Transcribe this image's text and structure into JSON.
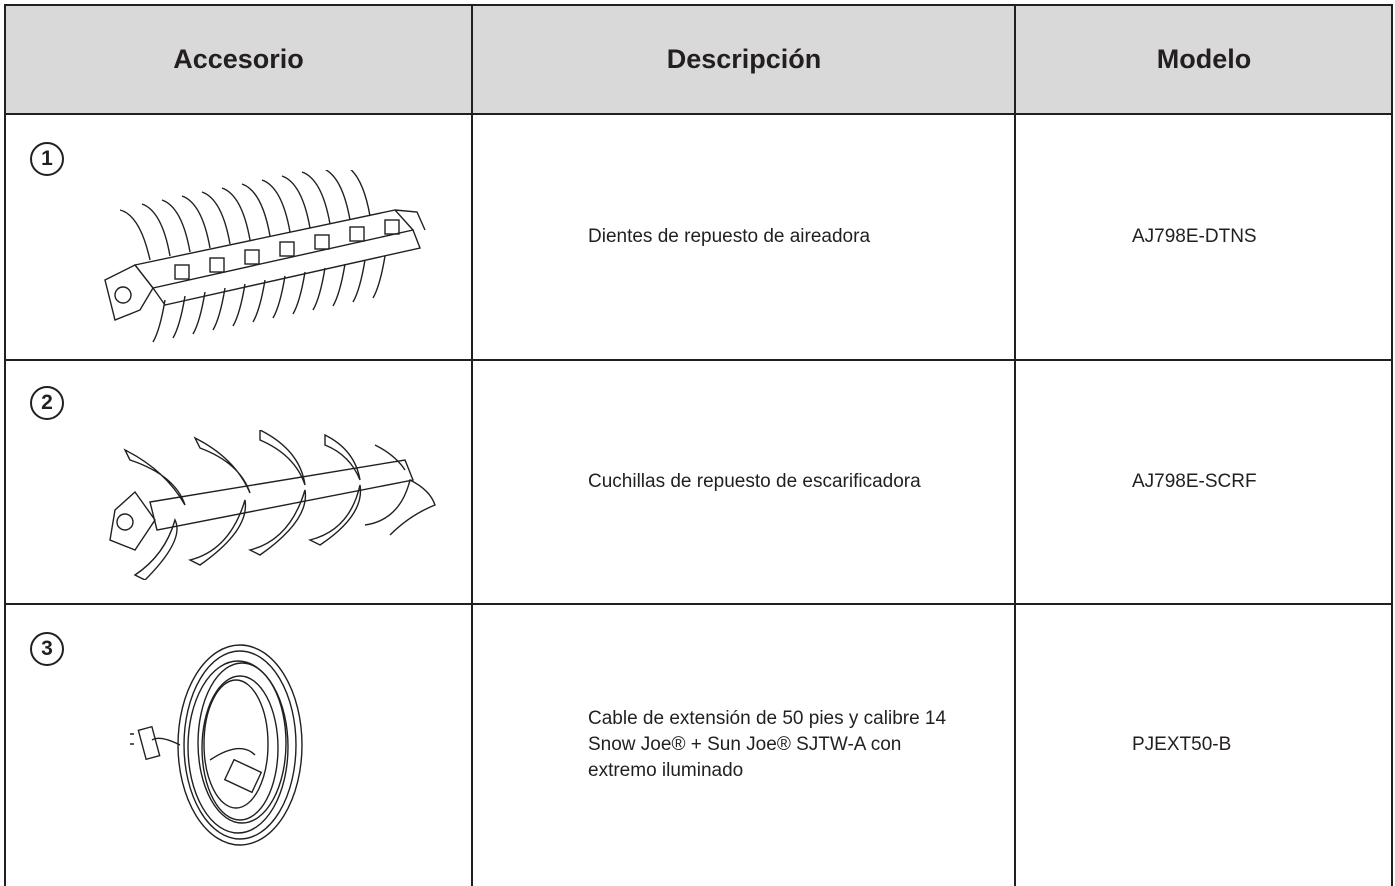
{
  "table": {
    "header": [
      "Accesorio",
      "Descripción",
      "Modelo"
    ],
    "rows": [
      {
        "number": "1",
        "description": [
          "Dientes de repuesto de aireadora"
        ],
        "model": "AJ798E-DTNS"
      },
      {
        "number": "2",
        "description": [
          "Cuchillas de repuesto de escarificadora"
        ],
        "model": "AJ798E-SCRF"
      },
      {
        "number": "3",
        "description": [
          "Cable de extensión de 50 pies y calibre 14",
          "Snow Joe® + Sun Joe® SJTW-A con",
          "extremo iluminado"
        ],
        "model": "PJEXT50-B"
      }
    ]
  }
}
